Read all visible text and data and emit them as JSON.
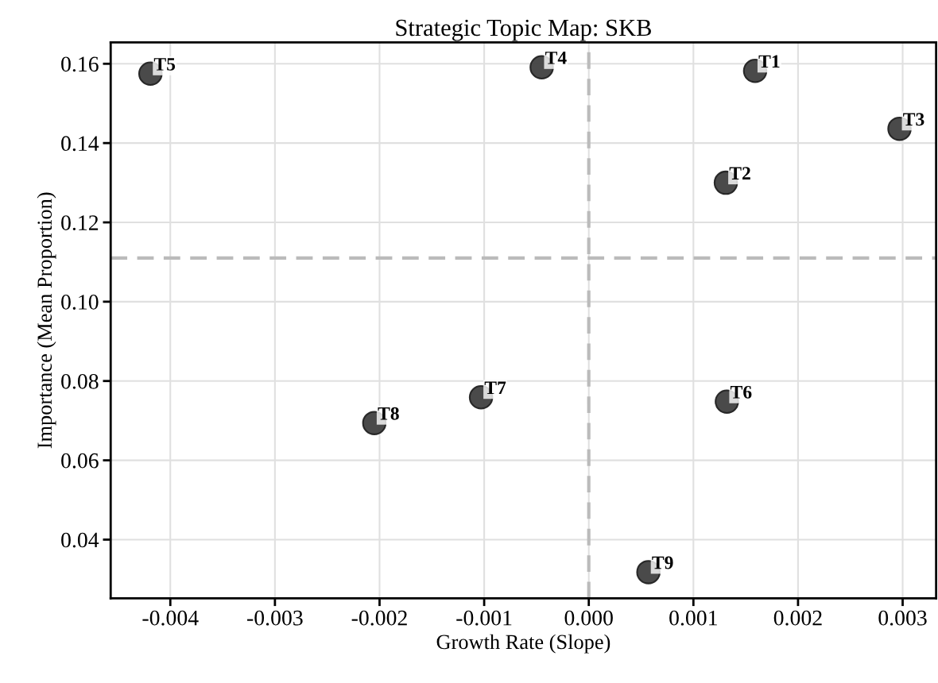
{
  "chart_data": {
    "type": "scatter",
    "title": "Strategic Topic Map: SKB",
    "xlabel": "Growth Rate (Slope)",
    "ylabel": "Importance (Mean Proportion)",
    "x": [
      0.00159,
      0.00131,
      0.00297,
      -0.00045,
      -0.00419,
      0.00132,
      -0.00103,
      -0.00205,
      0.00057
    ],
    "series": [
      {
        "color": "#404040",
        "values": [
          0.1582,
          0.13,
          0.1436,
          0.1591,
          0.1575,
          0.0748,
          0.0759,
          0.0694,
          0.0318
        ]
      }
    ],
    "annotations": [
      {
        "text": "T1",
        "x": 0.00159,
        "y": 0.1582
      },
      {
        "text": "T2",
        "x": 0.00131,
        "y": 0.13
      },
      {
        "text": "T3",
        "x": 0.00297,
        "y": 0.1436
      },
      {
        "text": "T4",
        "x": -0.00045,
        "y": 0.1591
      },
      {
        "text": "T5",
        "x": -0.00419,
        "y": 0.1575
      },
      {
        "text": "T6",
        "x": 0.00132,
        "y": 0.0748
      },
      {
        "text": "T7",
        "x": -0.00103,
        "y": 0.0759
      },
      {
        "text": "T8",
        "x": -0.00205,
        "y": 0.0694
      },
      {
        "text": "T9",
        "x": 0.00057,
        "y": 0.0318
      }
    ],
    "ref_lines": [
      {
        "axis": "x",
        "value": 0,
        "color": "#bbbbbb",
        "line_style": "dashed"
      },
      {
        "axis": "y",
        "value": 0.111,
        "color": "#bbbbbb",
        "line_style": "dashed"
      }
    ],
    "xlim": [
      -0.00457,
      0.00332
    ],
    "ylim": [
      0.0252,
      0.1654
    ],
    "xticks": [
      {
        "value": -0.004,
        "label": "-0.004"
      },
      {
        "value": -0.003,
        "label": "-0.003"
      },
      {
        "value": -0.002,
        "label": "-0.002"
      },
      {
        "value": -0.001,
        "label": "-0.001"
      },
      {
        "value": 0,
        "label": "0.000"
      },
      {
        "value": 0.001,
        "label": "0.001"
      },
      {
        "value": 0.002,
        "label": "0.002"
      },
      {
        "value": 0.003,
        "label": "0.003"
      }
    ],
    "yticks": [
      0.04,
      0.06,
      0.08,
      {
        "value": 0.1,
        "label": "0.10"
      },
      0.12,
      0.14,
      0.16
    ],
    "grid": true,
    "marker": "circle",
    "legend": false
  }
}
